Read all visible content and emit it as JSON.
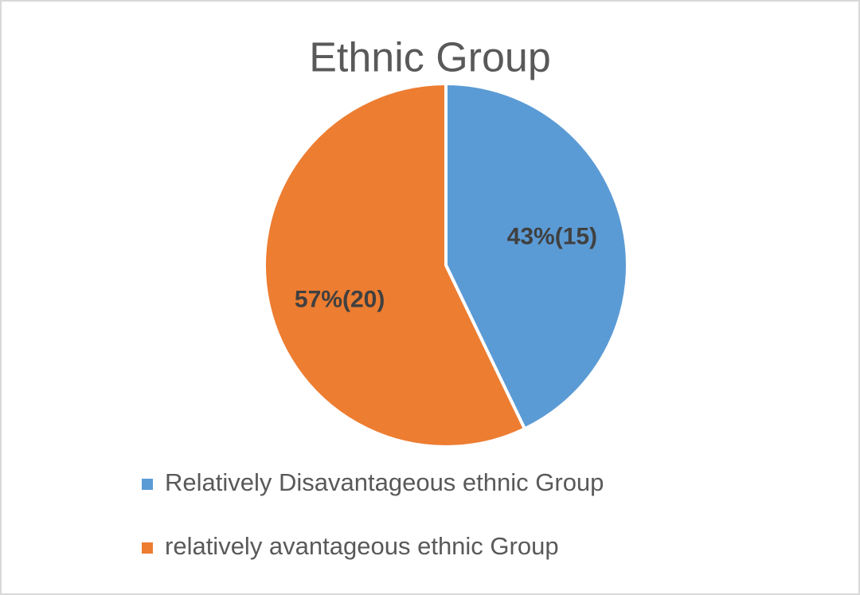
{
  "chart_data": {
    "type": "pie",
    "title": "Ethnic Group",
    "categories": [
      "Relatively Disavantageous ethnic Group",
      "relatively avantageous ethnic Group"
    ],
    "values": [
      15,
      20
    ],
    "value_labels": [
      "43%(15)",
      "57%(20)"
    ],
    "colors": [
      "#5b9bd5",
      "#ed7d31"
    ],
    "legend": "bottom"
  }
}
